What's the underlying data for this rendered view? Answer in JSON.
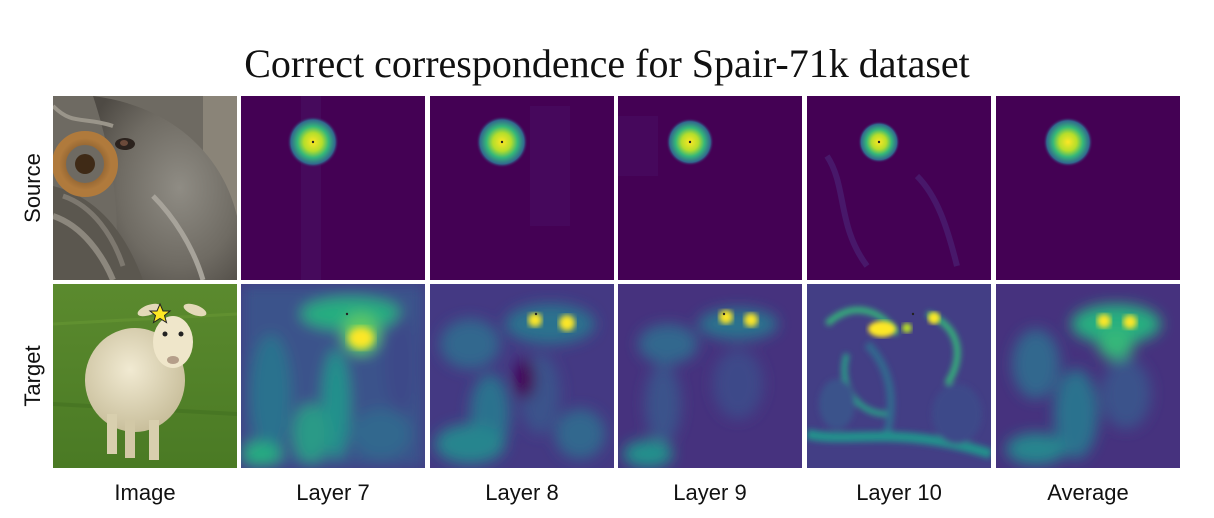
{
  "title": "Correct correspondence for Spair-71k dataset",
  "rows": [
    {
      "label": "Source"
    },
    {
      "label": "Target"
    }
  ],
  "columns": [
    {
      "label": "Image"
    },
    {
      "label": "Layer 7"
    },
    {
      "label": "Layer 8"
    },
    {
      "label": "Layer 9"
    },
    {
      "label": "Layer 10"
    },
    {
      "label": "Average"
    }
  ],
  "colors": {
    "heatmap_low": "#440154",
    "heatmap_mid": "#21918c",
    "heatmap_high": "#fde725"
  },
  "keypoint_marker": "star-icon"
}
